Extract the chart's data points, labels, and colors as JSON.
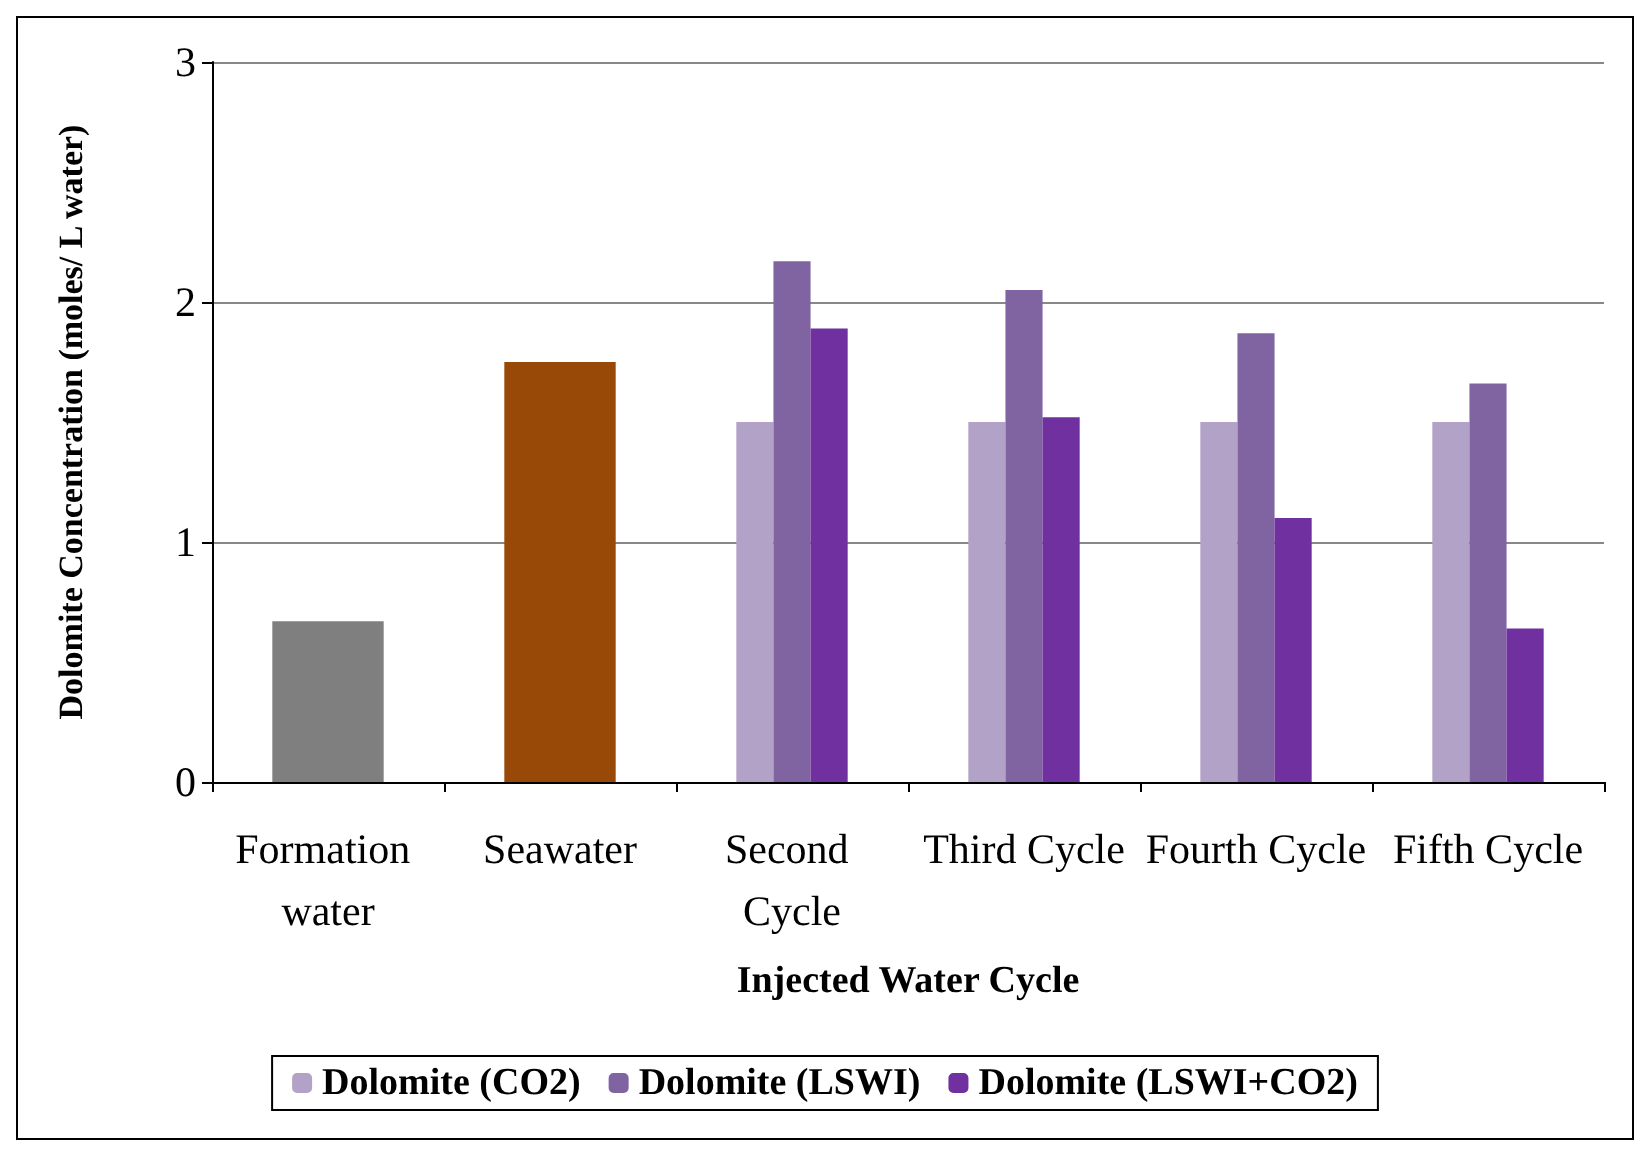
{
  "chart_data": {
    "type": "bar",
    "xlabel": "Injected Water Cycle",
    "ylabel": "Dolomite Concentration (moles/ L water)",
    "categories": [
      "Formation water",
      "Seawater",
      "Second Cycle",
      "Third Cycle",
      "Fourth Cycle",
      "Fifth Cycle"
    ],
    "series": [
      {
        "colors": [
          "#7f7f7f",
          "#984807",
          null,
          null,
          null,
          null
        ],
        "values": [
          0.67,
          1.75,
          null,
          null,
          null,
          null
        ]
      },
      {
        "name": "Dolomite (CO2)",
        "color": "#b3a2c7",
        "values": [
          null,
          null,
          1.5,
          1.5,
          1.5,
          1.5
        ]
      },
      {
        "name": "Dolomite (LSWI)",
        "color": "#8064a2",
        "values": [
          null,
          null,
          2.17,
          2.05,
          1.87,
          1.66
        ]
      },
      {
        "name": "Dolomite (LSWI+CO2)",
        "color": "#7030a0",
        "values": [
          null,
          null,
          1.89,
          1.52,
          1.1,
          0.64
        ]
      }
    ],
    "ylim": [
      0,
      3
    ],
    "yticks": [
      0,
      1,
      2,
      3
    ],
    "grid": "y",
    "legend": "bottom"
  }
}
